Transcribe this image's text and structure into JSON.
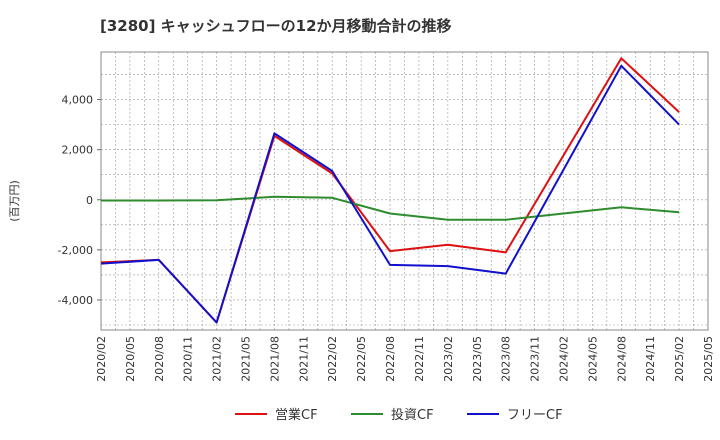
{
  "chart_data": {
    "type": "line",
    "title": "[3280]  キャッシュフローの12か月移動合計の推移",
    "ylabel": "(百万円)",
    "xlabel": "",
    "ylim": [
      -5200,
      5900
    ],
    "yticks": [
      -4000,
      -2000,
      0,
      2000,
      4000
    ],
    "ytick_labels": [
      "-4,000",
      "-2,000",
      "0",
      "2,000",
      "4,000"
    ],
    "x": [
      "2020/02",
      "2020/05",
      "2020/08",
      "2020/11",
      "2021/02",
      "2021/05",
      "2021/08",
      "2021/11",
      "2022/02",
      "2022/05",
      "2022/08",
      "2022/11",
      "2023/02",
      "2023/05",
      "2023/08",
      "2023/11",
      "2024/02",
      "2024/05",
      "2024/08",
      "2024/11",
      "2025/02",
      "2025/05"
    ],
    "grid": true,
    "legend_position": "bottom",
    "series": [
      {
        "name": "営業CF",
        "color": "#dd1111",
        "values": [
          -2500,
          null,
          -2400,
          null,
          -4900,
          null,
          2550,
          null,
          1050,
          null,
          -2050,
          null,
          -1800,
          null,
          -2100,
          null,
          null,
          null,
          5650,
          null,
          3500,
          null
        ]
      },
      {
        "name": "投資CF",
        "color": "#2e8b2e",
        "values": [
          -30,
          null,
          -30,
          null,
          -20,
          null,
          120,
          null,
          80,
          null,
          -550,
          null,
          -800,
          null,
          -800,
          null,
          -550,
          null,
          -300,
          null,
          -500,
          null
        ]
      },
      {
        "name": "フリーCF",
        "color": "#1111cc",
        "values": [
          -2550,
          null,
          -2400,
          null,
          -4900,
          null,
          2650,
          null,
          1150,
          null,
          -2600,
          null,
          -2650,
          null,
          -2950,
          null,
          null,
          null,
          5350,
          null,
          3000,
          null
        ]
      }
    ]
  }
}
